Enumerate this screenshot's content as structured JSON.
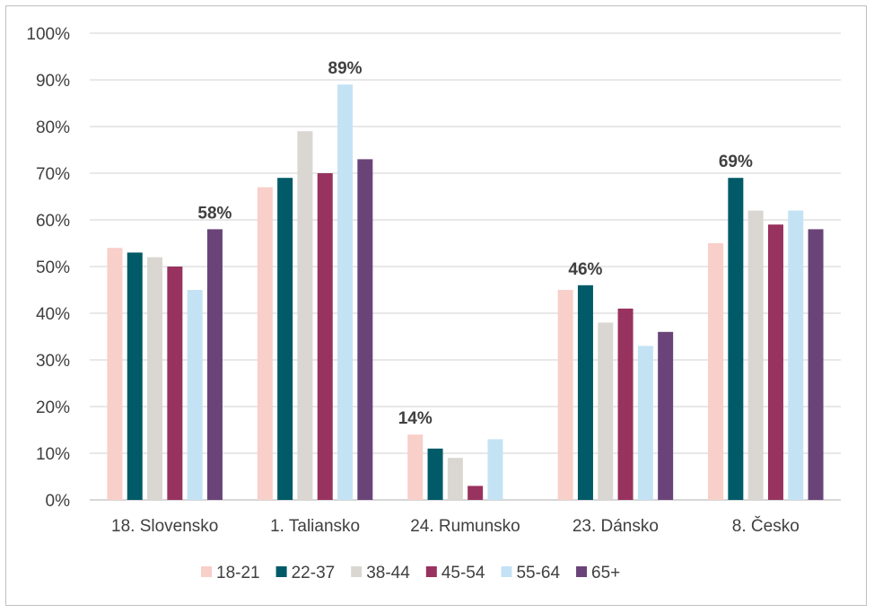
{
  "chart_data": {
    "type": "bar",
    "categories": [
      "18. Slovensko",
      "1. Taliansko",
      "24. Rumunsko",
      "23. Dánsko",
      "8. Česko"
    ],
    "series": [
      {
        "name": "18-21",
        "color": "#f8cfc9",
        "values": [
          54,
          67,
          14,
          45,
          55
        ]
      },
      {
        "name": "22-37",
        "color": "#005a67",
        "values": [
          53,
          69,
          11,
          46,
          69
        ]
      },
      {
        "name": "38-44",
        "color": "#dad7d2",
        "values": [
          52,
          79,
          9,
          38,
          62
        ]
      },
      {
        "name": "45-54",
        "color": "#98325f",
        "values": [
          50,
          70,
          3,
          41,
          59
        ]
      },
      {
        "name": "55-64",
        "color": "#c3e3f4",
        "values": [
          45,
          89,
          13,
          33,
          62
        ]
      },
      {
        "name": "65+",
        "color": "#6a4479",
        "values": [
          58,
          73,
          null,
          36,
          58
        ]
      }
    ],
    "data_labels": [
      {
        "category_index": 0,
        "series_index": 5,
        "text": "58%"
      },
      {
        "category_index": 1,
        "series_index": 4,
        "text": "89%"
      },
      {
        "category_index": 2,
        "series_index": 0,
        "text": "14%"
      },
      {
        "category_index": 3,
        "series_index": 1,
        "text": "46%"
      },
      {
        "category_index": 4,
        "series_index": 1,
        "text": "69%"
      }
    ],
    "y_ticks": [
      "0%",
      "10%",
      "20%",
      "30%",
      "40%",
      "50%",
      "60%",
      "70%",
      "80%",
      "90%",
      "100%"
    ],
    "ylim": [
      0,
      100
    ],
    "grid": true,
    "legend_position": "bottom",
    "gridline_color": "#d9d9d9",
    "axis_color": "#bfbfbf"
  }
}
